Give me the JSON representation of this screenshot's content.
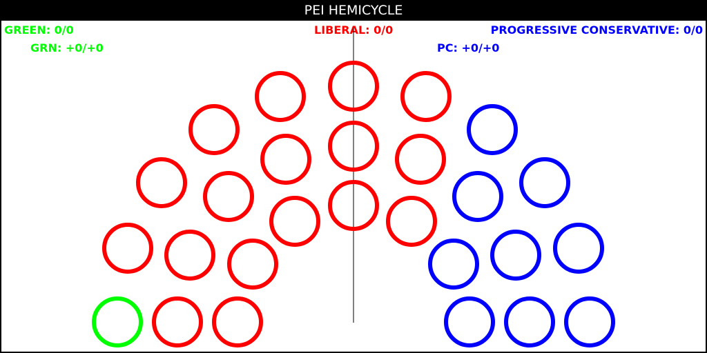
{
  "title": "PEI HEMICYCLE",
  "parties": {
    "green": {
      "label": "GREEN: 0/0",
      "change": "GRN: +0/+0",
      "color": "#00ff00"
    },
    "liberal": {
      "label": "LIBERAL: 0/0",
      "color": "#ff0000"
    },
    "pc": {
      "label": "PROGRESSIVE CONSERVATIVE: 0/0",
      "change": "PC: +0/+0",
      "color": "#0000ff"
    }
  },
  "chart_data": {
    "type": "hemicycle",
    "total_seats": 27,
    "series": [
      {
        "name": "GREEN",
        "seats": 1,
        "color": "#00ff00"
      },
      {
        "name": "LIBERAL",
        "seats": 17,
        "color": "#ff0000"
      },
      {
        "name": "PROGRESSIVE CONSERVATIVE",
        "seats": 9,
        "color": "#0000ff"
      }
    ],
    "divider": "center"
  }
}
